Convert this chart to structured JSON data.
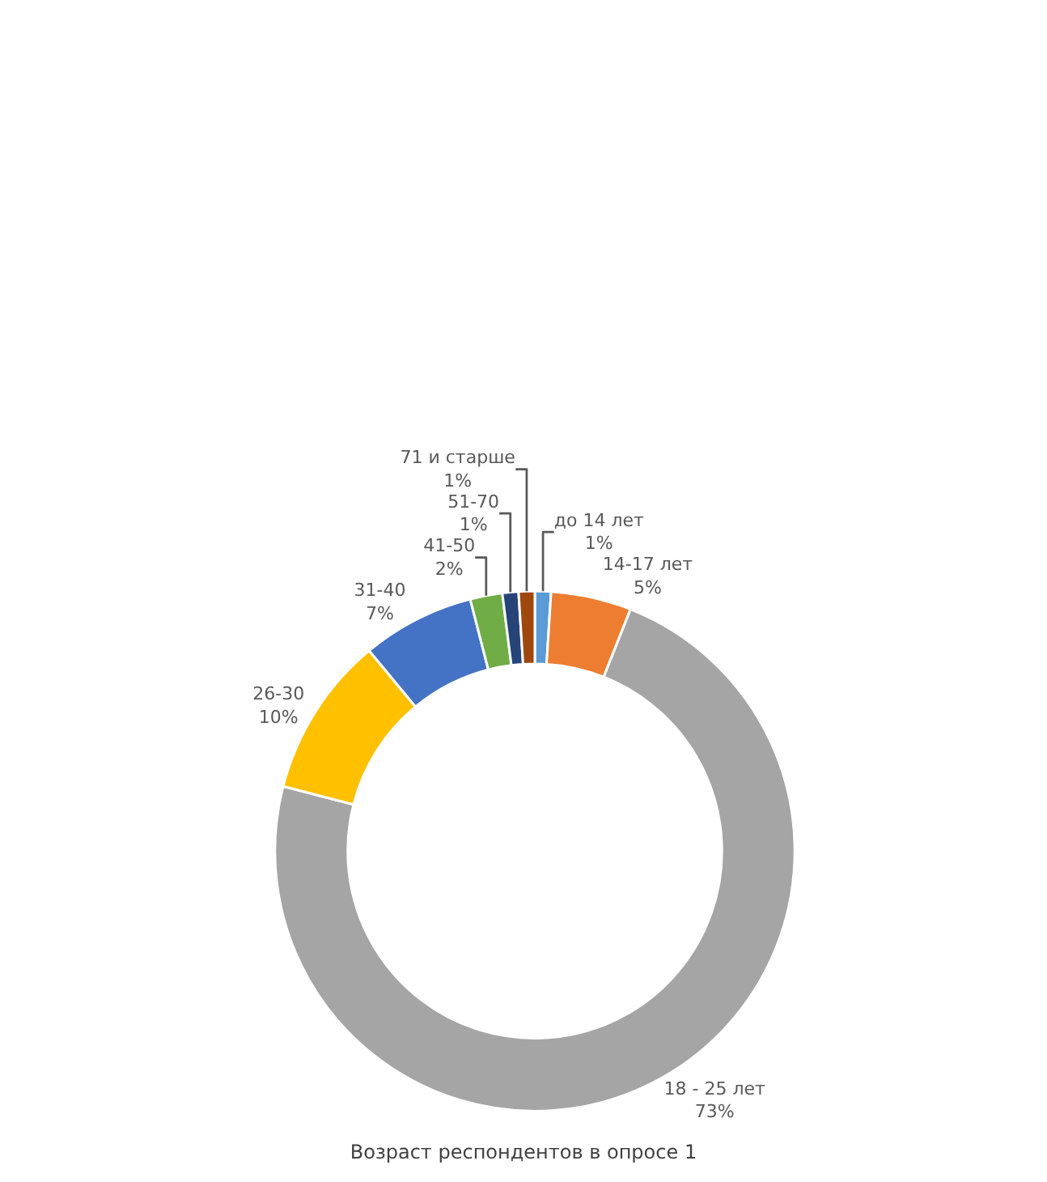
{
  "chart_data": {
    "type": "donut",
    "title": "Возраст респондентов в опросе 1",
    "categories": [
      "до 14 лет",
      "14-17 лет",
      "18 - 25 лет",
      "26-30",
      "31-40",
      "41-50",
      "51-70",
      "71 и старше"
    ],
    "values": [
      1,
      5,
      73,
      10,
      7,
      2,
      1,
      1
    ],
    "value_labels": [
      "1%",
      "5%",
      "73%",
      "10%",
      "7%",
      "2%",
      "1%",
      "1%"
    ],
    "colors": [
      "#5b9bd5",
      "#ed7d31",
      "#a5a5a5",
      "#ffc000",
      "#4472c4",
      "#70ad47",
      "#264478",
      "#9e480e"
    ],
    "legend": false
  }
}
